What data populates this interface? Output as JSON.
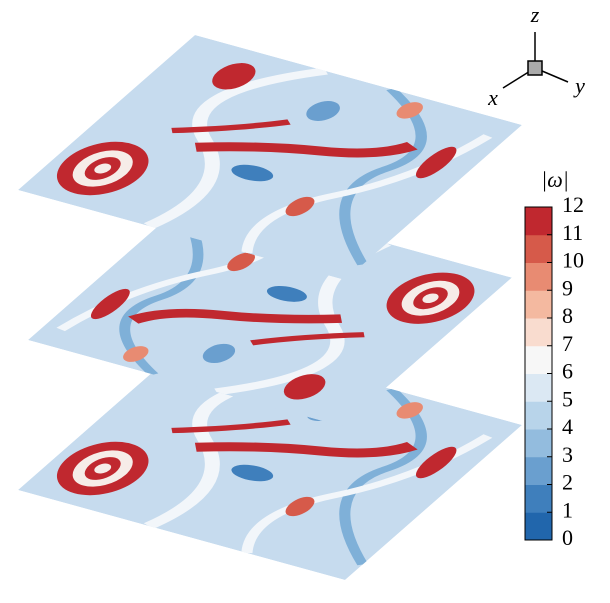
{
  "chart_data": {
    "type": "contour",
    "colorbar": {
      "label": "|ω|",
      "lim": [
        0,
        12
      ],
      "ticks": [
        0,
        1,
        2,
        3,
        4,
        5,
        6,
        7,
        8,
        9,
        10,
        11,
        12
      ],
      "colors": [
        "#2166ac",
        "#3f7fbc",
        "#6a9fcf",
        "#93bcde",
        "#b8d4ea",
        "#dbe8f3",
        "#f7f7f7",
        "#f9dccf",
        "#f4b9a0",
        "#e88b72",
        "#d65a4a",
        "#c0282f"
      ]
    },
    "axes_labels": {
      "x": "x",
      "y": "y",
      "z": "z"
    }
  }
}
